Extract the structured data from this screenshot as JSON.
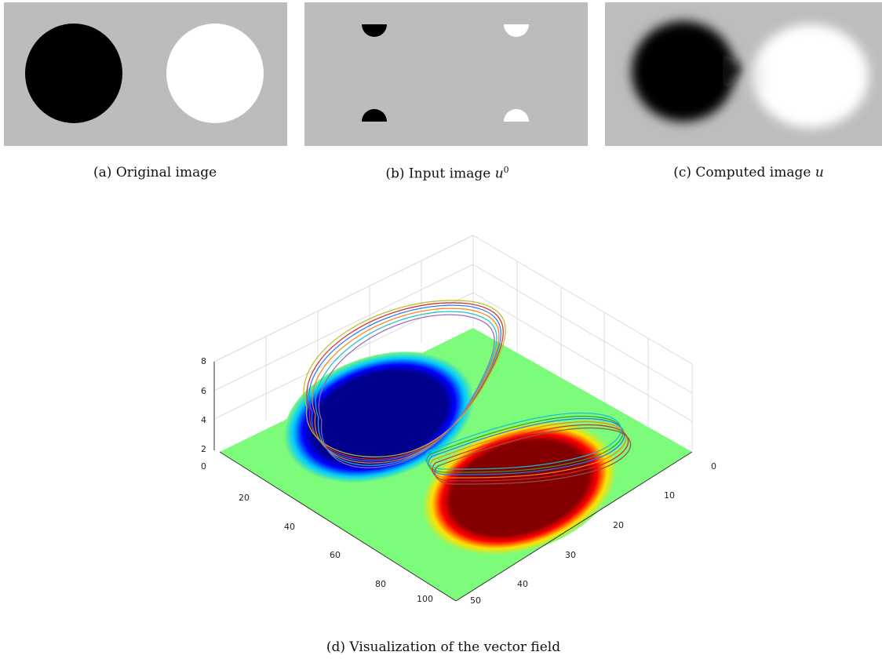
{
  "captions": {
    "a": {
      "prefix": "(a)",
      "text": "Original image"
    },
    "b": {
      "prefix": "(b)",
      "text": "Input image ",
      "math": "u",
      "sup": "0"
    },
    "c": {
      "prefix": "(c)",
      "text": "Computed image ",
      "math": "u"
    },
    "d": {
      "prefix": "(d)",
      "text": "Visualization of the vector field"
    }
  },
  "plot3d": {
    "z_ticks": [
      "2",
      "4",
      "6",
      "8"
    ],
    "left_axis_ticks": [
      "0",
      "20",
      "40",
      "60",
      "80",
      "100"
    ],
    "right_axis_ticks": [
      "0",
      "10",
      "20",
      "30",
      "40",
      "50"
    ]
  },
  "colors": {
    "panel_gray": "#bcbcbc",
    "green_plane": "#7dfb7a",
    "blue_region": "#00008c",
    "red_region": "#840000",
    "ellipse_edge_cyan": "#00c8ff",
    "ellipse_edge_yellow": "#ffe000"
  }
}
